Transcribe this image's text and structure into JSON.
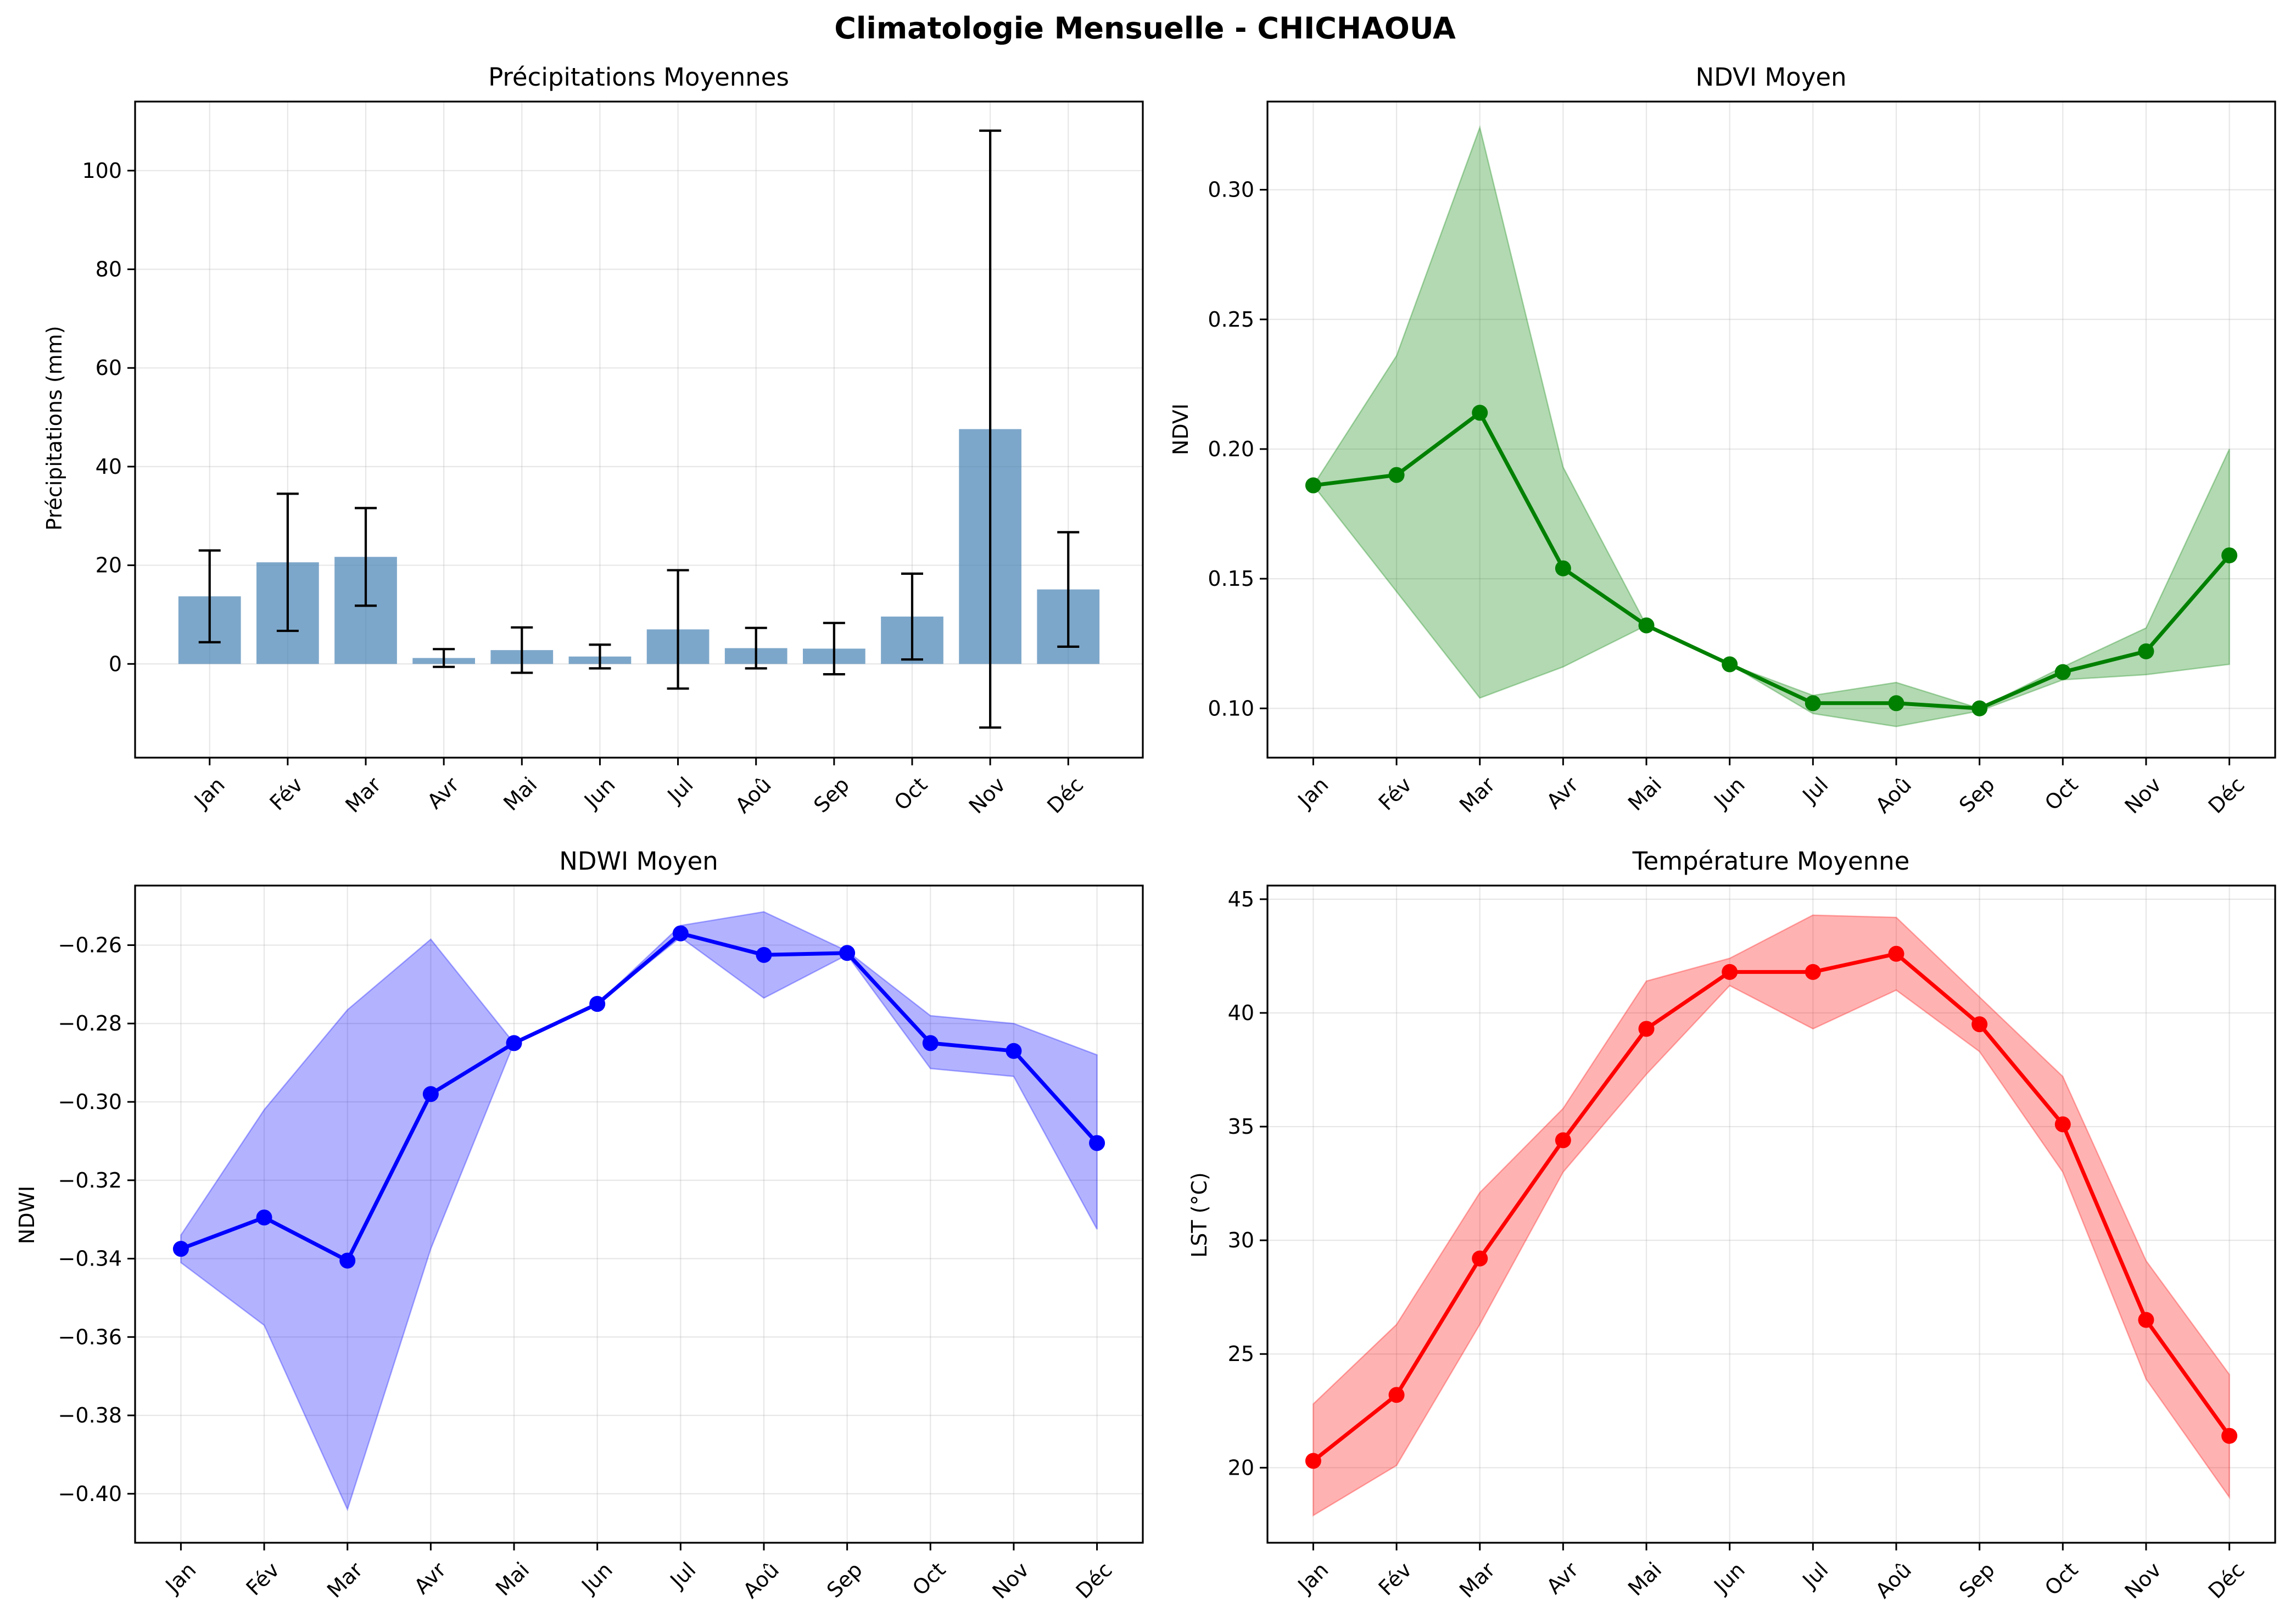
{
  "suptitle": "Climatologie Mensuelle - CHICHAOUA",
  "months": [
    "Jan",
    "Fév",
    "Mar",
    "Avr",
    "Mai",
    "Jun",
    "Jul",
    "Aoû",
    "Sep",
    "Oct",
    "Nov",
    "Déc"
  ],
  "chart_data": [
    {
      "id": "precip",
      "type": "bar",
      "title": "Précipitations Moyennes",
      "xlabel": "",
      "ylabel": "Précipitations (mm)",
      "ylim": [
        -19,
        114
      ],
      "yticks": [
        0,
        20,
        40,
        60,
        80,
        100
      ],
      "ytick_labels": [
        "0",
        "20",
        "40",
        "60",
        "80",
        "100"
      ],
      "grid": true,
      "color": "#4682b4",
      "values": [
        13.7,
        20.6,
        21.7,
        1.2,
        2.8,
        1.5,
        7.0,
        3.2,
        3.1,
        9.6,
        47.6,
        15.1
      ],
      "error": [
        9.3,
        13.9,
        9.9,
        1.8,
        4.6,
        2.4,
        12.0,
        4.1,
        5.2,
        8.7,
        60.5,
        11.6
      ]
    },
    {
      "id": "ndvi",
      "type": "line",
      "title": "NDVI Moyen",
      "xlabel": "",
      "ylabel": "NDVI",
      "ylim": [
        0.081,
        0.334
      ],
      "yticks": [
        0.1,
        0.15,
        0.2,
        0.25,
        0.3
      ],
      "ytick_labels": [
        "0.10",
        "0.15",
        "0.20",
        "0.25",
        "0.30"
      ],
      "grid": true,
      "color": "#008000",
      "values": [
        0.186,
        0.19,
        0.214,
        0.154,
        0.132,
        0.117,
        0.102,
        0.102,
        0.1,
        0.114,
        0.122,
        0.159
      ],
      "lower": [
        0.186,
        0.145,
        0.104,
        0.116,
        0.132,
        0.117,
        0.098,
        0.093,
        0.099,
        0.111,
        0.113,
        0.117
      ],
      "upper": [
        0.186,
        0.236,
        0.324,
        0.193,
        0.132,
        0.117,
        0.105,
        0.11,
        0.1,
        0.116,
        0.131,
        0.2
      ]
    },
    {
      "id": "ndwi",
      "type": "line",
      "title": "NDWI Moyen",
      "xlabel": "",
      "ylabel": "NDWI",
      "ylim": [
        -0.4125,
        -0.2448
      ],
      "yticks": [
        -0.4,
        -0.38,
        -0.36,
        -0.34,
        -0.32,
        -0.3,
        -0.28,
        -0.26
      ],
      "ytick_labels": [
        "−0.40",
        "−0.38",
        "−0.36",
        "−0.34",
        "−0.32",
        "−0.30",
        "−0.28",
        "−0.26"
      ],
      "grid": true,
      "color": "#0000ff",
      "values": [
        -0.3375,
        -0.3295,
        -0.3405,
        -0.298,
        -0.285,
        -0.275,
        -0.257,
        -0.2625,
        -0.262,
        -0.285,
        -0.287,
        -0.3105
      ],
      "lower": [
        -0.341,
        -0.357,
        -0.404,
        -0.3375,
        -0.285,
        -0.275,
        -0.258,
        -0.2735,
        -0.2625,
        -0.2915,
        -0.2935,
        -0.3325
      ],
      "upper": [
        -0.334,
        -0.302,
        -0.2765,
        -0.2585,
        -0.285,
        -0.275,
        -0.255,
        -0.2515,
        -0.2615,
        -0.278,
        -0.28,
        -0.288
      ]
    },
    {
      "id": "lst",
      "type": "line",
      "title": "Température Moyenne",
      "xlabel": "",
      "ylabel": "LST (°C)",
      "ylim": [
        16.7,
        45.6
      ],
      "yticks": [
        20,
        25,
        30,
        35,
        40,
        45
      ],
      "ytick_labels": [
        "20",
        "25",
        "30",
        "35",
        "40",
        "45"
      ],
      "grid": true,
      "color": "#ff0000",
      "values": [
        20.3,
        23.2,
        29.2,
        34.4,
        39.3,
        41.8,
        41.8,
        42.6,
        39.5,
        35.1,
        26.5,
        21.4
      ],
      "lower": [
        17.9,
        20.1,
        26.3,
        33.0,
        37.3,
        41.2,
        39.3,
        41.0,
        38.3,
        33.0,
        23.9,
        18.7
      ],
      "upper": [
        22.8,
        26.3,
        32.1,
        35.8,
        41.4,
        42.4,
        44.3,
        44.2,
        40.7,
        37.2,
        29.1,
        24.1
      ]
    }
  ]
}
